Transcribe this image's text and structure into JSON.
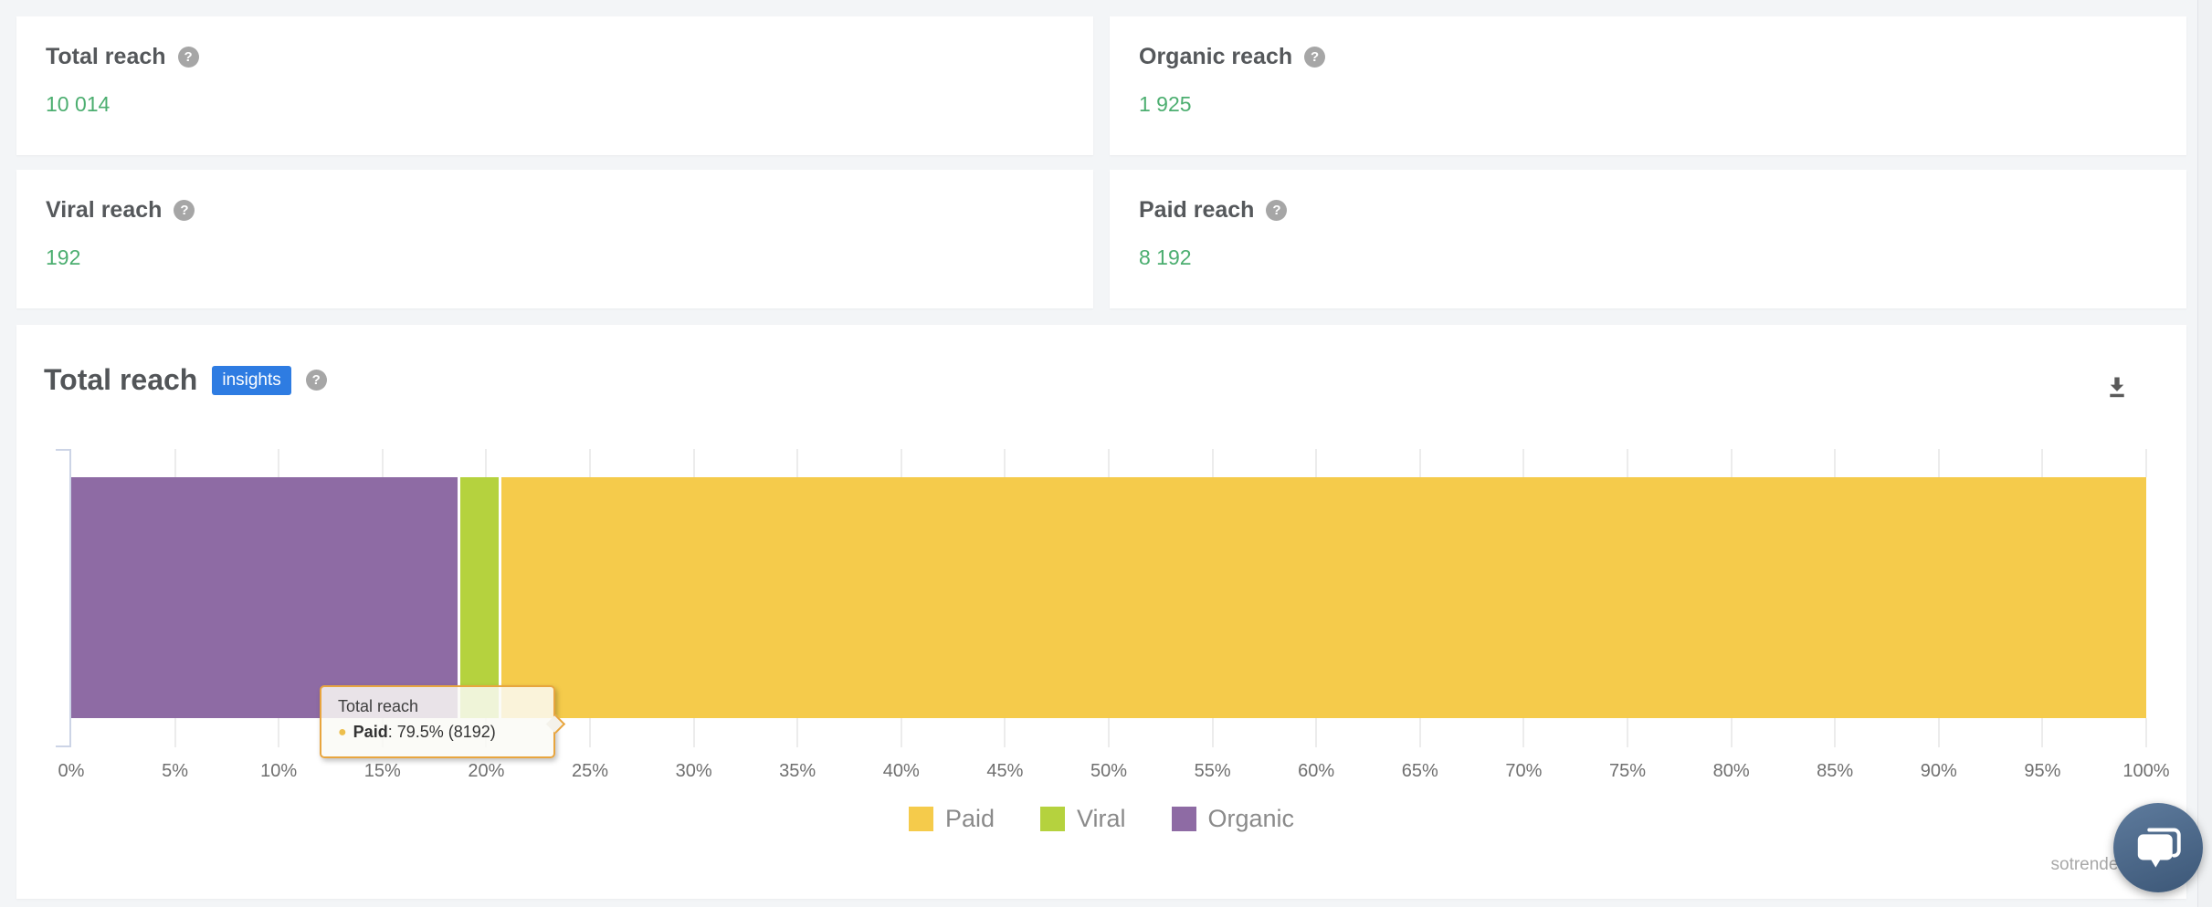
{
  "page": {
    "background": "#f3f5f7",
    "help_glyph": "?",
    "watermark": "sotrender."
  },
  "stat_cards": [
    {
      "title": "Total reach",
      "value": "10 014"
    },
    {
      "title": "Organic reach",
      "value": "1 925"
    },
    {
      "title": "Viral reach",
      "value": "192"
    },
    {
      "title": "Paid reach",
      "value": "8 192"
    }
  ],
  "chart_panel": {
    "title": "Total reach",
    "badge_label": "insights"
  },
  "tooltip": {
    "title": "Total reach",
    "series_name": "Paid",
    "series_value": ": 79.5% (8192)",
    "bullet_color": "#edbf4c"
  },
  "chart_data": {
    "type": "bar",
    "orientation": "horizontal",
    "stacked": true,
    "title": "Total reach",
    "categories": [
      "Total reach"
    ],
    "series": [
      {
        "name": "Paid",
        "value": 8192,
        "percent": 79.5,
        "color": "#f5cb4b"
      },
      {
        "name": "Viral",
        "value": 192,
        "percent": 1.9,
        "color": "#b5d23e"
      },
      {
        "name": "Organic",
        "value": 1925,
        "percent": 18.7,
        "color": "#8e6ba4"
      }
    ],
    "bar_order_left_to_right": [
      "Organic",
      "Viral",
      "Paid"
    ],
    "x_ticks": [
      "0%",
      "5%",
      "10%",
      "15%",
      "20%",
      "25%",
      "30%",
      "35%",
      "40%",
      "45%",
      "50%",
      "55%",
      "60%",
      "65%",
      "70%",
      "75%",
      "80%",
      "85%",
      "90%",
      "95%",
      "100%"
    ],
    "xlim": [
      0,
      100
    ],
    "grid": "ticks-outside-bar",
    "legend": [
      "Paid",
      "Viral",
      "Organic"
    ],
    "legend_position": "bottom"
  },
  "colors": {
    "value_green": "#4cae70",
    "badge_blue": "#2e7ce2",
    "axis_line": "#ccd4e6",
    "gridline": "#ececec",
    "tooltip_border": "#e8a53e",
    "chat_bubble_blue": "#476284"
  }
}
